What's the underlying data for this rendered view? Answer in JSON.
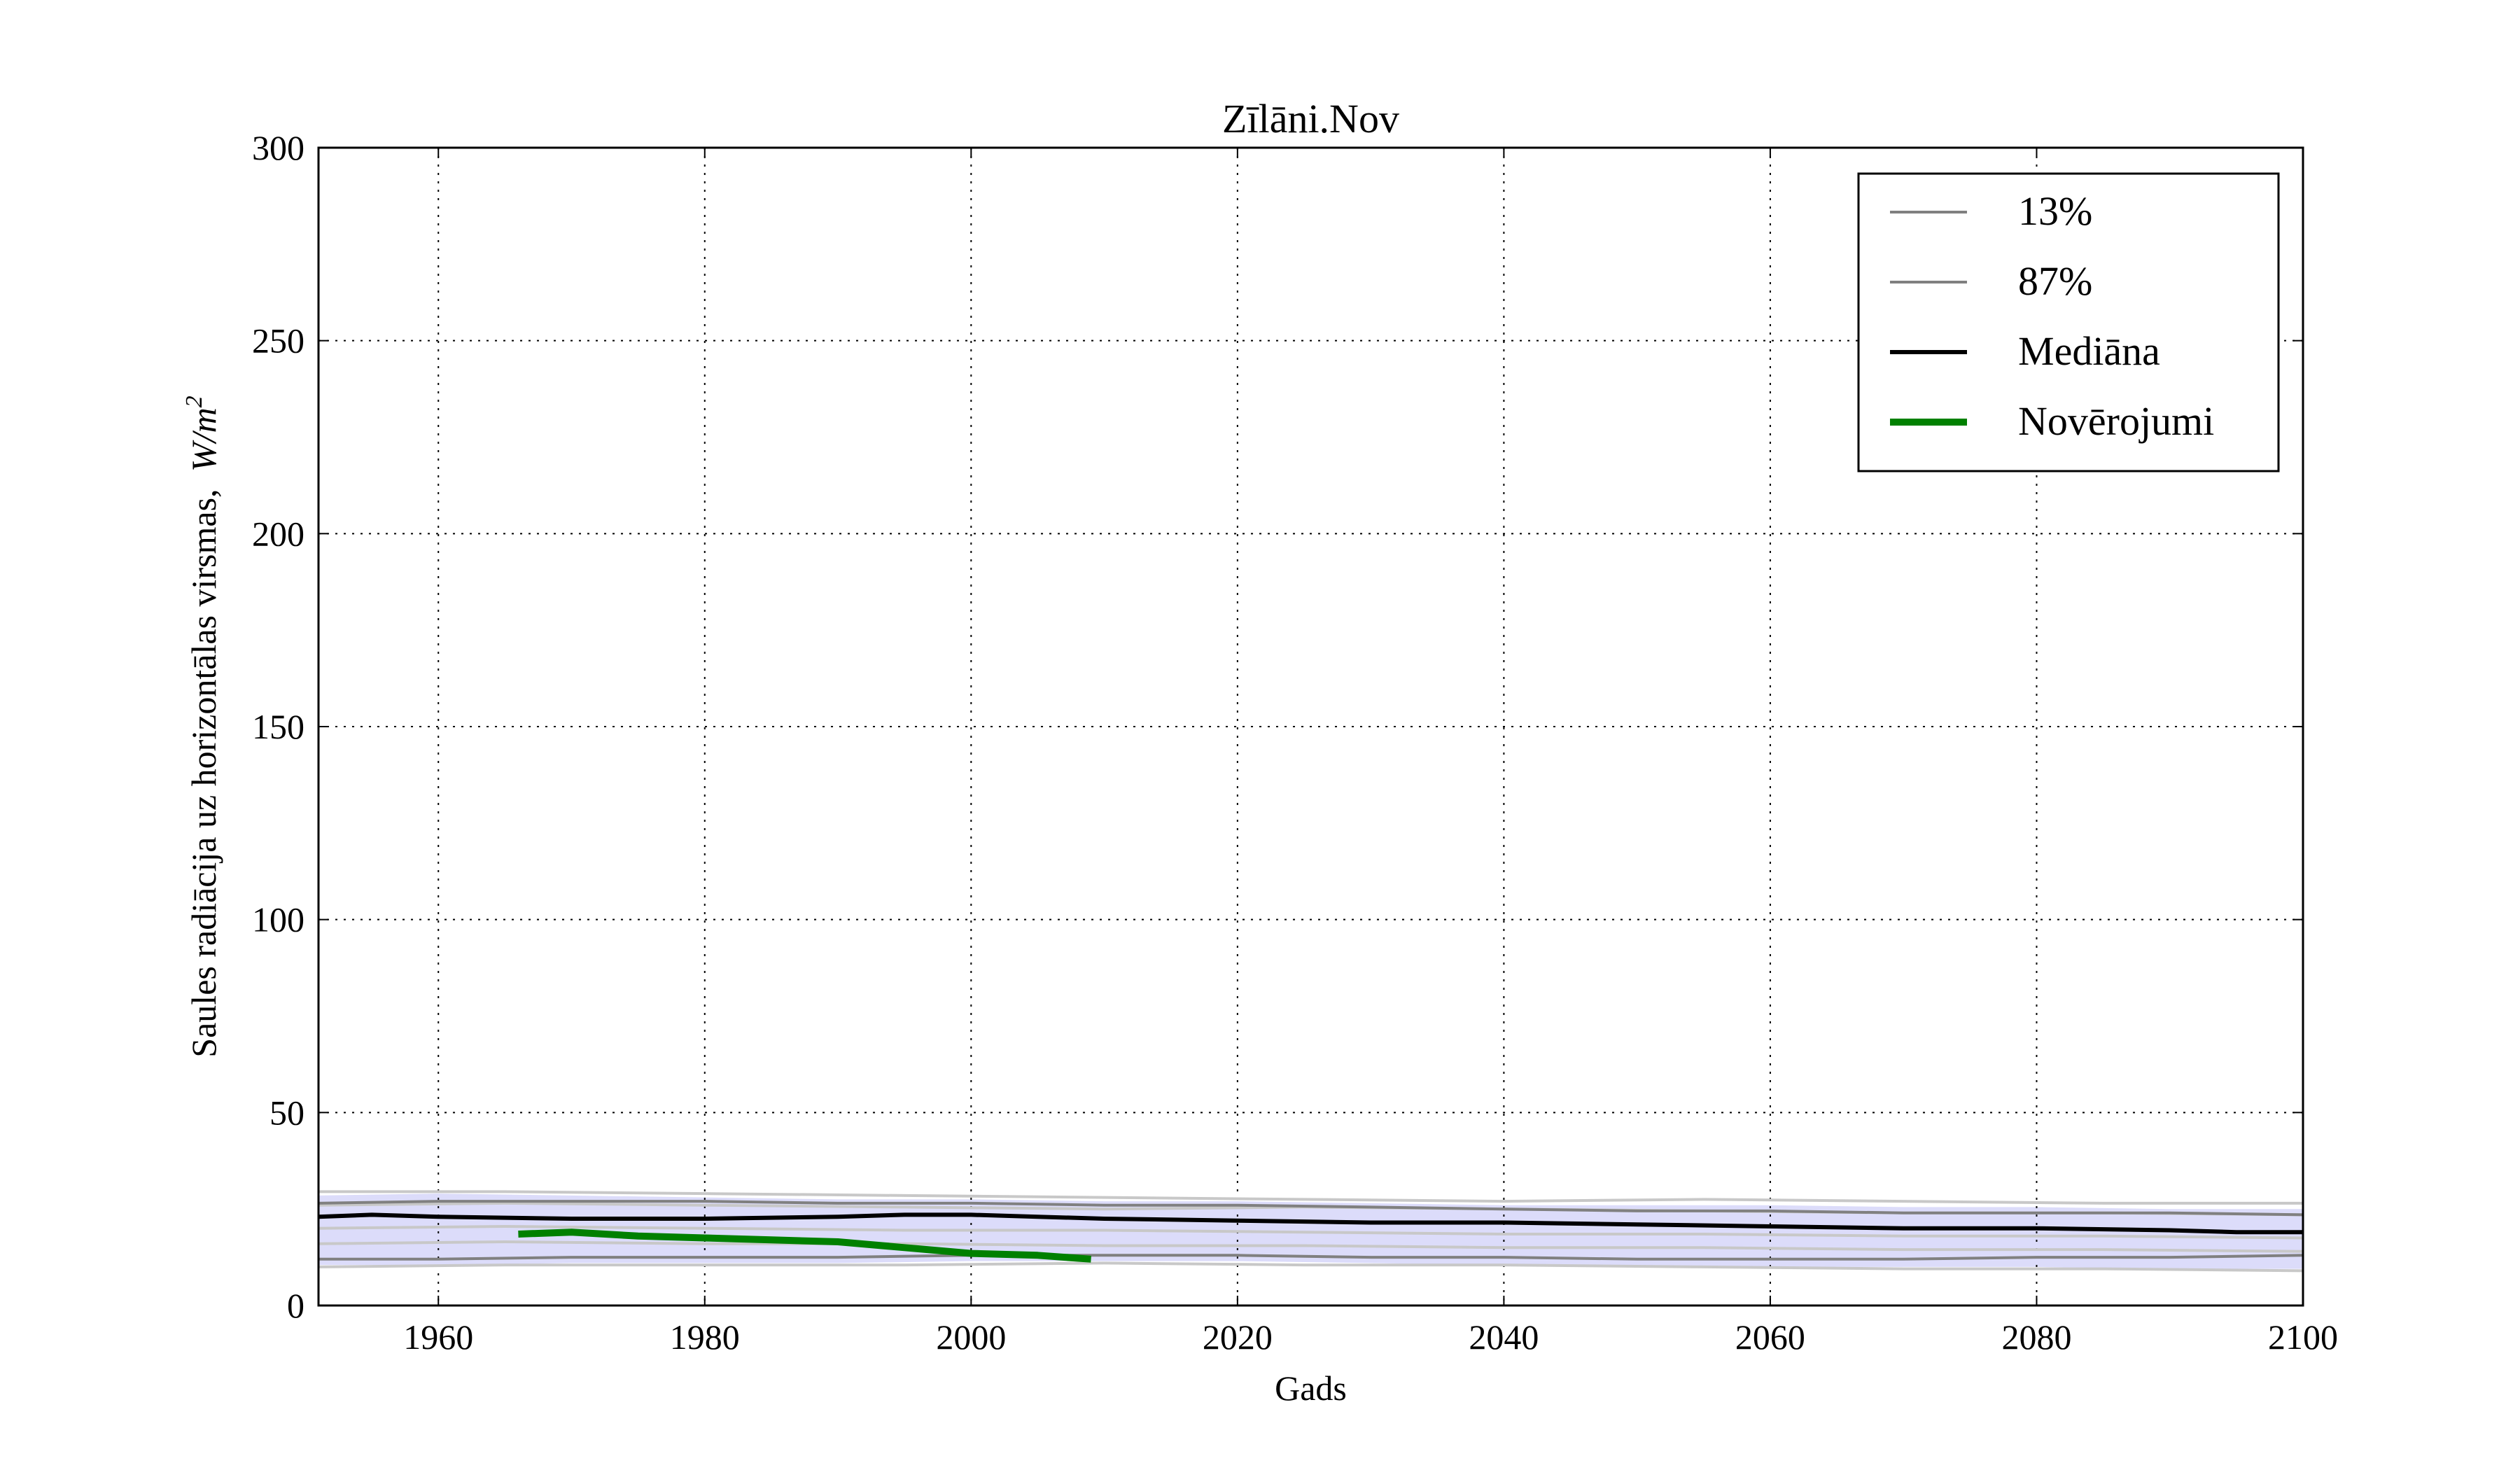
{
  "chart_data": {
    "type": "line",
    "title": "Zīlāni.Nov",
    "xlabel": "Gads",
    "ylabel": "Saules radiācija uz horizontālas virsmas,",
    "ylabel_unit_base": "W/m",
    "ylabel_unit_exp": "2",
    "xlim": [
      1951,
      2100
    ],
    "ylim": [
      0,
      300
    ],
    "xticks": [
      1960,
      1980,
      2000,
      2020,
      2040,
      2060,
      2080,
      2100
    ],
    "yticks": [
      0,
      50,
      100,
      150,
      200,
      250,
      300
    ],
    "grid": true,
    "legend_position": "top-right",
    "legend": [
      "13%",
      "87%",
      "Mediāna",
      "Novērojumi"
    ],
    "colors": {
      "band": "#dcdcfa",
      "percentile": "#808080",
      "ensemble": "#c8c8c8",
      "median": "#000000",
      "observations": "#008000"
    },
    "band": {
      "x": [
        1951,
        1960,
        1970,
        1980,
        1990,
        2000,
        2010,
        2020,
        2030,
        2040,
        2050,
        2060,
        2070,
        2080,
        2090,
        2100
      ],
      "lower": [
        10.5,
        10.5,
        11,
        11,
        11,
        11.5,
        11.5,
        11.5,
        11,
        10.5,
        10,
        10,
        10,
        10,
        9.5,
        9.5
      ],
      "upper": [
        28.5,
        29,
        28.5,
        28,
        27.5,
        27.5,
        27,
        27,
        26.5,
        26,
        26,
        26,
        25.5,
        25.5,
        25,
        25
      ]
    },
    "ensemble_members": [
      {
        "x": [
          1951,
          1965,
          1980,
          1995,
          2010,
          2025,
          2040,
          2055,
          2070,
          2085,
          2100
        ],
        "values": [
          29.5,
          29.5,
          29,
          28.5,
          28,
          27.5,
          27,
          27.5,
          27,
          26.5,
          26.5
        ]
      },
      {
        "x": [
          1951,
          1965,
          1980,
          1995,
          2010,
          2025,
          2040,
          2055,
          2070,
          2085,
          2100
        ],
        "values": [
          26,
          26.5,
          26,
          25.5,
          25,
          25.5,
          25,
          24.5,
          24,
          24,
          23.5
        ]
      },
      {
        "x": [
          1951,
          1965,
          1980,
          1995,
          2010,
          2025,
          2040,
          2055,
          2070,
          2085,
          2100
        ],
        "values": [
          20,
          20.5,
          20,
          19.5,
          19.5,
          19,
          18.5,
          18.5,
          18,
          18,
          17.5
        ]
      },
      {
        "x": [
          1951,
          1965,
          1980,
          1995,
          2010,
          2025,
          2040,
          2055,
          2070,
          2085,
          2100
        ],
        "values": [
          16,
          16.5,
          16,
          16,
          15.5,
          15.5,
          15,
          15,
          14.5,
          14.5,
          14
        ]
      },
      {
        "x": [
          1951,
          1965,
          1980,
          1995,
          2010,
          2025,
          2040,
          2055,
          2070,
          2085,
          2100
        ],
        "values": [
          10,
          10.5,
          10.5,
          10.5,
          11,
          10.5,
          10.5,
          10,
          9.5,
          9.5,
          9
        ]
      }
    ],
    "series": [
      {
        "name": "13%",
        "x": [
          1951,
          1960,
          1970,
          1980,
          1990,
          2000,
          2010,
          2020,
          2030,
          2040,
          2050,
          2060,
          2070,
          2080,
          2090,
          2100
        ],
        "values": [
          12,
          12,
          12.5,
          12.5,
          12.5,
          13,
          13,
          13,
          12.5,
          12.5,
          12,
          12,
          12,
          12.5,
          12.5,
          13
        ]
      },
      {
        "name": "87%",
        "x": [
          1951,
          1960,
          1970,
          1980,
          1990,
          2000,
          2010,
          2020,
          2030,
          2040,
          2050,
          2060,
          2070,
          2080,
          2090,
          2100
        ],
        "values": [
          26.5,
          27,
          27,
          27,
          26.5,
          26.5,
          26,
          26,
          25.5,
          25,
          24.5,
          24.5,
          24,
          24,
          24,
          23.5
        ]
      },
      {
        "name": "Mediāna",
        "x": [
          1951,
          1955,
          1960,
          1970,
          1980,
          1990,
          1995,
          2000,
          2005,
          2010,
          2020,
          2030,
          2040,
          2050,
          2060,
          2070,
          2080,
          2090,
          2095,
          2100
        ],
        "values": [
          23,
          23.5,
          23,
          22.5,
          22.5,
          23,
          23.5,
          23.5,
          23,
          22.5,
          22,
          21.5,
          21.5,
          21,
          20.5,
          20,
          20,
          19.5,
          19,
          19
        ]
      },
      {
        "name": "Novērojumi",
        "x": [
          1966,
          1970,
          1975,
          1980,
          1985,
          1990,
          1995,
          2000,
          2005,
          2009
        ],
        "values": [
          18.5,
          19,
          18,
          17.5,
          17,
          16.5,
          15,
          13.5,
          13,
          12
        ]
      }
    ]
  }
}
